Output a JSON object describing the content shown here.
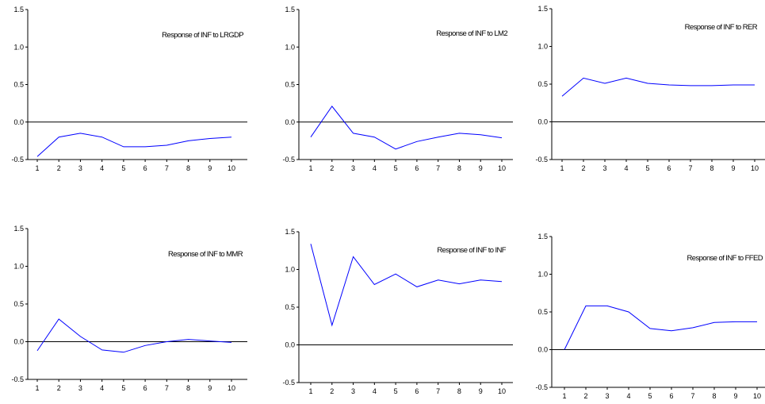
{
  "chart_data": [
    {
      "type": "line",
      "title": "Response of INF to LRGDP",
      "x": [
        1,
        2,
        3,
        4,
        5,
        6,
        7,
        8,
        9,
        10
      ],
      "series": [
        {
          "values": [
            -0.46,
            -0.2,
            -0.15,
            -0.2,
            -0.33,
            -0.33,
            -0.31,
            -0.25,
            -0.22,
            -0.2
          ]
        }
      ],
      "ylim": [
        -0.5,
        1.5
      ],
      "yticks": [
        "-0.5",
        "0.0",
        "0.5",
        "1.0",
        "1.5"
      ],
      "xticks": [
        "1",
        "2",
        "3",
        "4",
        "5",
        "6",
        "7",
        "8",
        "9",
        "10"
      ],
      "color": "#0000ff"
    },
    {
      "type": "line",
      "title": "Response of INF to LM2",
      "x": [
        1,
        2,
        3,
        4,
        5,
        6,
        7,
        8,
        9,
        10
      ],
      "series": [
        {
          "values": [
            -0.2,
            0.21,
            -0.15,
            -0.2,
            -0.36,
            -0.26,
            -0.2,
            -0.15,
            -0.17,
            -0.21
          ]
        }
      ],
      "ylim": [
        -0.5,
        1.5
      ],
      "yticks": [
        "-0.5",
        "0.0",
        "0.5",
        "1.0",
        "1.5"
      ],
      "xticks": [
        "1",
        "2",
        "3",
        "4",
        "5",
        "6",
        "7",
        "8",
        "9",
        "10"
      ],
      "color": "#0000ff"
    },
    {
      "type": "line",
      "title": "Response of INF to RER",
      "x": [
        1,
        2,
        3,
        4,
        5,
        6,
        7,
        8,
        9,
        10
      ],
      "series": [
        {
          "values": [
            0.34,
            0.58,
            0.51,
            0.58,
            0.51,
            0.49,
            0.48,
            0.48,
            0.49,
            0.49
          ]
        }
      ],
      "ylim": [
        -0.5,
        1.5
      ],
      "yticks": [
        "-0.5",
        "0.0",
        "0.5",
        "1.0",
        "1.5"
      ],
      "xticks": [
        "1",
        "2",
        "3",
        "4",
        "5",
        "6",
        "7",
        "8",
        "9",
        "10"
      ],
      "color": "#0000ff"
    },
    {
      "type": "line",
      "title": "Response of INF to MMR",
      "x": [
        1,
        2,
        3,
        4,
        5,
        6,
        7,
        8,
        9,
        10
      ],
      "series": [
        {
          "values": [
            -0.12,
            0.3,
            0.07,
            -0.11,
            -0.14,
            -0.05,
            0.0,
            0.03,
            0.01,
            -0.01
          ]
        }
      ],
      "ylim": [
        -0.5,
        1.5
      ],
      "yticks": [
        "-0.5",
        "0.0",
        "0.5",
        "1.0",
        "1.5"
      ],
      "xticks": [
        "1",
        "2",
        "3",
        "4",
        "5",
        "6",
        "7",
        "8",
        "9",
        "10"
      ],
      "color": "#0000ff"
    },
    {
      "type": "line",
      "title": "Response of INF to INF",
      "x": [
        1,
        2,
        3,
        4,
        5,
        6,
        7,
        8,
        9,
        10
      ],
      "series": [
        {
          "values": [
            1.34,
            0.26,
            1.17,
            0.8,
            0.94,
            0.77,
            0.86,
            0.81,
            0.86,
            0.84
          ]
        }
      ],
      "ylim": [
        -0.5,
        1.5
      ],
      "yticks": [
        "-0.5",
        "0.0",
        "0.5",
        "1.0",
        "1.5"
      ],
      "xticks": [
        "1",
        "2",
        "3",
        "4",
        "5",
        "6",
        "7",
        "8",
        "9",
        "10"
      ],
      "color": "#0000ff"
    },
    {
      "type": "line",
      "title": "Response of INF to FFED",
      "x": [
        1,
        2,
        3,
        4,
        5,
        6,
        7,
        8,
        9,
        10
      ],
      "series": [
        {
          "values": [
            0.0,
            0.58,
            0.58,
            0.5,
            0.28,
            0.25,
            0.29,
            0.36,
            0.37,
            0.37
          ]
        }
      ],
      "ylim": [
        -0.5,
        1.5
      ],
      "yticks": [
        "-0.5",
        "0.0",
        "0.5",
        "1.0",
        "1.5"
      ],
      "xticks": [
        "1",
        "2",
        "3",
        "4",
        "5",
        "6",
        "7",
        "8",
        "9",
        "10"
      ],
      "color": "#0000ff"
    }
  ]
}
